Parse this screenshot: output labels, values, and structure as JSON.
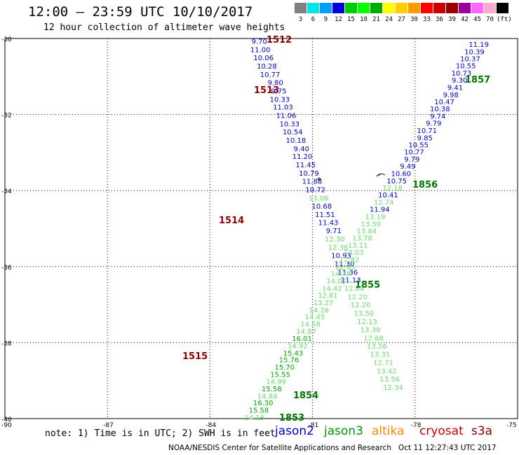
{
  "header": {
    "title": "12:00 – 23:59 UTC 10/10/2017",
    "subtitle": "12 hour collection of altimeter wave heights"
  },
  "legend": {
    "colors": [
      "#808080",
      "#00e5e5",
      "#00a0ff",
      "#0000dd",
      "#00cc00",
      "#00ff00",
      "#00aa00",
      "#ffff00",
      "#ffcc00",
      "#ff9900",
      "#ff0000",
      "#cc0000",
      "#990000",
      "#990099",
      "#ff66ff",
      "#ffaacc",
      "#000000"
    ],
    "labels": [
      "3",
      "6",
      "9",
      "12",
      "15",
      "18",
      "21",
      "24",
      "27",
      "30",
      "33",
      "36",
      "39",
      "42",
      "45",
      "70",
      "(ft)"
    ]
  },
  "axes": {
    "lat_labels": [
      "-30",
      "-32",
      "-34",
      "-36",
      "-38",
      "-40"
    ],
    "lon_labels": [
      "-90",
      "-87",
      "-84",
      "-81",
      "-78",
      "-75"
    ]
  },
  "satellite_colors": {
    "jason2": "#0000cc",
    "jason3": "#009900",
    "altika": "#ff8800",
    "cryosat": "#cc0000",
    "s3a": "#880000",
    "green_light": "#66dd66"
  },
  "passes": [
    {
      "label": "1512",
      "color": "#880000",
      "lat": -30.05,
      "lon": -82.4
    },
    {
      "label": "1513",
      "color": "#880000",
      "lat": -31.35,
      "lon": -82.5
    },
    {
      "label": "1514",
      "color": "#880000",
      "lat": -35.0,
      "lon": -83.7
    },
    {
      "label": "1515",
      "color": "#880000",
      "lat": -38.35,
      "lon": -85.3
    },
    {
      "label": "1857",
      "color": "#007700",
      "lat": -31.05,
      "lon": -76.6
    },
    {
      "label": "1856",
      "color": "#007700",
      "lat": -33.95,
      "lon": -78.0
    },
    {
      "label": "1855",
      "color": "#007700",
      "lat": -36.6,
      "lon": -79.6
    },
    {
      "label": "1854",
      "color": "#007700",
      "lat": -39.35,
      "lon": -81.4
    },
    {
      "label": "1853",
      "color": "#007700",
      "lat": -39.95,
      "lon": -81.8
    }
  ],
  "track_west": [
    {
      "v": "9.70",
      "lat": -30.05,
      "c": "b"
    },
    {
      "v": "11.00",
      "lat": -30.27,
      "c": "b"
    },
    {
      "v": "10.06",
      "lat": -30.48,
      "c": "b"
    },
    {
      "v": "10.28",
      "lat": -30.7,
      "c": "b"
    },
    {
      "v": "10.77",
      "lat": -30.92,
      "c": "b"
    },
    {
      "v": "9.80",
      "lat": -31.13,
      "c": "b"
    },
    {
      "v": "9.75",
      "lat": -31.35,
      "c": "b"
    },
    {
      "v": "10.33",
      "lat": -31.57,
      "c": "b"
    },
    {
      "v": "11.03",
      "lat": -31.78,
      "c": "b"
    },
    {
      "v": "11.06",
      "lat": -32.0,
      "c": "b"
    },
    {
      "v": "10.33",
      "lat": -32.22,
      "c": "b"
    },
    {
      "v": "10.54",
      "lat": -32.43,
      "c": "b"
    },
    {
      "v": "10.18",
      "lat": -32.65,
      "c": "b"
    },
    {
      "v": "9.40",
      "lat": -32.87,
      "c": "b"
    },
    {
      "v": "11.20",
      "lat": -33.08,
      "c": "b"
    },
    {
      "v": "11.45",
      "lat": -33.3,
      "c": "b"
    },
    {
      "v": "10.79",
      "lat": -33.52,
      "c": "b"
    },
    {
      "v": "11.88",
      "lat": -33.73,
      "c": "b"
    },
    {
      "v": "10.72",
      "lat": -33.95,
      "c": "b"
    },
    {
      "v": "13.06",
      "lat": -34.17,
      "c": "l"
    },
    {
      "v": "10.68",
      "lat": -34.38,
      "c": "b"
    },
    {
      "v": "11.51",
      "lat": -34.6,
      "c": "b"
    },
    {
      "v": "11.43",
      "lat": -34.82,
      "c": "b"
    },
    {
      "v": "9.71",
      "lat": -35.03,
      "c": "b"
    },
    {
      "v": "12.30",
      "lat": -35.25,
      "c": "l"
    },
    {
      "v": "12.38",
      "lat": -35.47,
      "c": "l"
    },
    {
      "v": "10.93",
      "lat": -35.68,
      "c": "b"
    },
    {
      "v": "11.30",
      "lat": -35.9,
      "c": "b"
    },
    {
      "v": "11.36",
      "lat": -36.12,
      "c": "b"
    },
    {
      "v": "11.13",
      "lat": -36.33,
      "c": "b"
    },
    {
      "v": "12.84",
      "lat": -36.55,
      "c": "l"
    },
    {
      "v": "12.20",
      "lat": -36.77,
      "c": "l"
    },
    {
      "v": "12.20",
      "lat": -36.98,
      "c": "l"
    },
    {
      "v": "13.50",
      "lat": -37.2,
      "c": "l"
    },
    {
      "v": "12.13",
      "lat": -37.42,
      "c": "l"
    },
    {
      "v": "13.39",
      "lat": -37.63,
      "c": "l"
    },
    {
      "v": "12.68",
      "lat": -37.85,
      "c": "l"
    },
    {
      "v": "13.26",
      "lat": -38.07,
      "c": "l"
    },
    {
      "v": "13.31",
      "lat": -38.28,
      "c": "l"
    },
    {
      "v": "12.71",
      "lat": -38.5,
      "c": "l"
    },
    {
      "v": "13.42",
      "lat": -38.72,
      "c": "l"
    },
    {
      "v": "13.56",
      "lat": -38.93,
      "c": "l"
    },
    {
      "v": "12.34",
      "lat": -39.15,
      "c": "l"
    }
  ],
  "track_east": [
    {
      "v": "11.19",
      "lat": -30.1,
      "c": "b"
    },
    {
      "v": "10.39",
      "lat": -30.32,
      "c": "b"
    },
    {
      "v": "10.37",
      "lat": -30.53,
      "c": "b"
    },
    {
      "v": "10.55",
      "lat": -30.75,
      "c": "b"
    },
    {
      "v": "10.73",
      "lat": -30.97,
      "c": "b"
    },
    {
      "v": "9.30",
      "lat": -31.18,
      "c": "b"
    },
    {
      "v": "9.41",
      "lat": -31.4,
      "c": "b"
    },
    {
      "v": "9.98",
      "lat": -31.62,
      "c": "b"
    },
    {
      "v": "10.47",
      "lat": -31.83,
      "c": "b"
    },
    {
      "v": "10.38",
      "lat": -32.05,
      "c": "b"
    },
    {
      "v": "9.74",
      "lat": -32.27,
      "c": "b"
    },
    {
      "v": "9.79",
      "lat": -32.48,
      "c": "b"
    },
    {
      "v": "10.71",
      "lat": -32.7,
      "c": "b"
    },
    {
      "v": "9.85",
      "lat": -32.92,
      "c": "b"
    },
    {
      "v": "10.55",
      "lat": -33.13,
      "c": "b"
    },
    {
      "v": "10.77",
      "lat": -33.35,
      "c": "b"
    },
    {
      "v": "9.79",
      "lat": -33.57,
      "c": "b"
    },
    {
      "v": "9.49",
      "lat": -33.78,
      "c": "b"
    },
    {
      "v": "10.60",
      "lat": -34.0,
      "c": "b"
    },
    {
      "v": "10.75",
      "lat": -34.22,
      "c": "b"
    },
    {
      "v": "12.18",
      "lat": -34.43,
      "c": "l"
    },
    {
      "v": "10.41",
      "lat": -34.65,
      "c": "b"
    },
    {
      "v": "12.74",
      "lat": -34.87,
      "c": "l"
    },
    {
      "v": "11.94",
      "lat": -35.08,
      "c": "b"
    },
    {
      "v": "13.19",
      "lat": -35.3,
      "c": "l"
    },
    {
      "v": "13.50",
      "lat": -35.52,
      "c": "l"
    },
    {
      "v": "13.84",
      "lat": -35.73,
      "c": "l"
    },
    {
      "v": "13.78",
      "lat": -35.95,
      "c": "l"
    },
    {
      "v": "13.11",
      "lat": -36.17,
      "c": "l"
    },
    {
      "v": "13.03",
      "lat": -36.38,
      "c": "l"
    },
    {
      "v": "12.82",
      "lat": -36.6,
      "c": "l"
    },
    {
      "v": "12.95",
      "lat": -36.82,
      "c": "l"
    },
    {
      "v": "14.78",
      "lat": -37.03,
      "c": "l"
    },
    {
      "v": "14.02",
      "lat": -37.25,
      "c": "l"
    },
    {
      "v": "14.42",
      "lat": -37.47,
      "c": "l"
    },
    {
      "v": "12.81",
      "lat": -37.68,
      "c": "l"
    },
    {
      "v": "13.27",
      "lat": -37.9,
      "c": "l"
    },
    {
      "v": "14.26",
      "lat": -38.12,
      "c": "l"
    },
    {
      "v": "14.45",
      "lat": -38.33,
      "c": "l"
    },
    {
      "v": "14.58",
      "lat": -38.55,
      "c": "l"
    },
    {
      "v": "14.87",
      "lat": -38.77,
      "c": "l"
    },
    {
      "v": "16.01",
      "lat": -38.98,
      "c": "g"
    },
    {
      "v": "14.92",
      "lat": -39.2,
      "c": "l"
    },
    {
      "v": "15.43",
      "lat": -39.42,
      "c": "g"
    },
    {
      "v": "15.76",
      "lat": -39.63,
      "c": "g"
    },
    {
      "v": "15.70",
      "lat": -39.85,
      "c": "g"
    },
    {
      "v": "15.55",
      "lat": -40.07,
      "c": "g"
    },
    {
      "v": "14.99",
      "lat": -40.28,
      "c": "l"
    },
    {
      "v": "15.58",
      "lat": -40.5,
      "c": "g"
    },
    {
      "v": "14.84",
      "lat": -40.72,
      "c": "l"
    },
    {
      "v": "16.30",
      "lat": -40.93,
      "c": "g"
    },
    {
      "v": "15.58",
      "lat": -41.15,
      "c": "g"
    },
    {
      "v": "14.19",
      "lat": -41.37,
      "c": "l"
    }
  ],
  "notes": {
    "note": "note: 1) Time is in UTC; 2) SWH is in feet",
    "jason2": "jason2",
    "jason3": "jason3",
    "altika": "altika",
    "cryosat": "cryosat",
    "s3a": "s3a"
  },
  "footer": "NOAA/NESDIS Center for Satellite Applications and Research   Oct 11 12:27:43 UTC 2017"
}
